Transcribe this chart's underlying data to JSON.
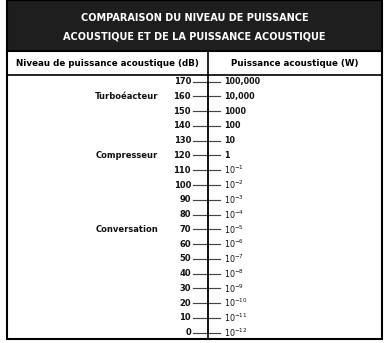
{
  "title_line1": "COMPARAISON DU NIVEAU DE PUISSANCE",
  "title_line2": "ACOUSTIQUE ET DE LA PUISSANCE ACOUSTIQUE",
  "col1_header": "Niveau de puissance acoustique (dB)",
  "col2_header": "Puissance acoustique (W)",
  "title_bg": "#1e1e1e",
  "title_color": "#ffffff",
  "header_bg": "#ffffff",
  "header_color": "#000000",
  "body_bg": "#ffffff",
  "scale_values": [
    170,
    160,
    150,
    140,
    130,
    120,
    110,
    100,
    90,
    80,
    70,
    60,
    50,
    40,
    30,
    20,
    10,
    0
  ],
  "right_labels": [
    "100,000",
    "10,000",
    "1000",
    "100",
    "10",
    "1",
    "$10^{-1}$",
    "$10^{-2}$",
    "$10^{-3}$",
    "$10^{-4}$",
    "$10^{-5}$",
    "$10^{-6}$",
    "$10^{-7}$",
    "$10^{-8}$",
    "$10^{-9}$",
    "$10^{-10}$",
    "$10^{-11}$",
    "$10^{-12}$"
  ],
  "source_labels": [
    {
      "text": "Turboéacteur",
      "db": 160
    },
    {
      "text": "Compresseur",
      "db": 120
    },
    {
      "text": "Conversation",
      "db": 70
    }
  ],
  "fig_width": 3.89,
  "fig_height": 3.43,
  "dpi": 100,
  "border_color": "#000000"
}
